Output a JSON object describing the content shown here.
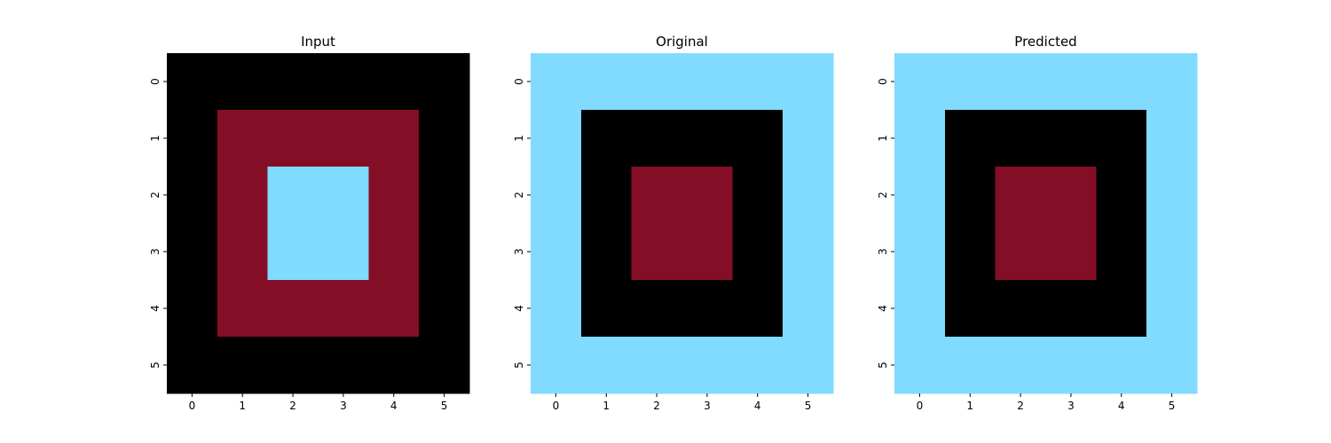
{
  "colors": {
    "0": "#000000",
    "1": "#850e27",
    "2": "#80dbff"
  },
  "chart_data": [
    {
      "type": "heatmap",
      "title": "Input",
      "x_ticks": [
        "0",
        "1",
        "2",
        "3",
        "4",
        "5"
      ],
      "y_ticks": [
        "0",
        "1",
        "2",
        "3",
        "4",
        "5"
      ],
      "grid": [
        [
          0,
          0,
          0,
          0,
          0,
          0
        ],
        [
          0,
          1,
          1,
          1,
          1,
          0
        ],
        [
          0,
          1,
          2,
          2,
          1,
          0
        ],
        [
          0,
          1,
          2,
          2,
          1,
          0
        ],
        [
          0,
          1,
          1,
          1,
          1,
          0
        ],
        [
          0,
          0,
          0,
          0,
          0,
          0
        ]
      ]
    },
    {
      "type": "heatmap",
      "title": "Original",
      "x_ticks": [
        "0",
        "1",
        "2",
        "3",
        "4",
        "5"
      ],
      "y_ticks": [
        "0",
        "1",
        "2",
        "3",
        "4",
        "5"
      ],
      "grid": [
        [
          2,
          2,
          2,
          2,
          2,
          2
        ],
        [
          2,
          0,
          0,
          0,
          0,
          2
        ],
        [
          2,
          0,
          1,
          1,
          0,
          2
        ],
        [
          2,
          0,
          1,
          1,
          0,
          2
        ],
        [
          2,
          0,
          0,
          0,
          0,
          2
        ],
        [
          2,
          2,
          2,
          2,
          2,
          2
        ]
      ]
    },
    {
      "type": "heatmap",
      "title": "Predicted",
      "x_ticks": [
        "0",
        "1",
        "2",
        "3",
        "4",
        "5"
      ],
      "y_ticks": [
        "0",
        "1",
        "2",
        "3",
        "4",
        "5"
      ],
      "grid": [
        [
          2,
          2,
          2,
          2,
          2,
          2
        ],
        [
          2,
          0,
          0,
          0,
          0,
          2
        ],
        [
          2,
          0,
          1,
          1,
          0,
          2
        ],
        [
          2,
          0,
          1,
          1,
          0,
          2
        ],
        [
          2,
          0,
          0,
          0,
          0,
          2
        ],
        [
          2,
          2,
          2,
          2,
          2,
          2
        ]
      ]
    }
  ]
}
